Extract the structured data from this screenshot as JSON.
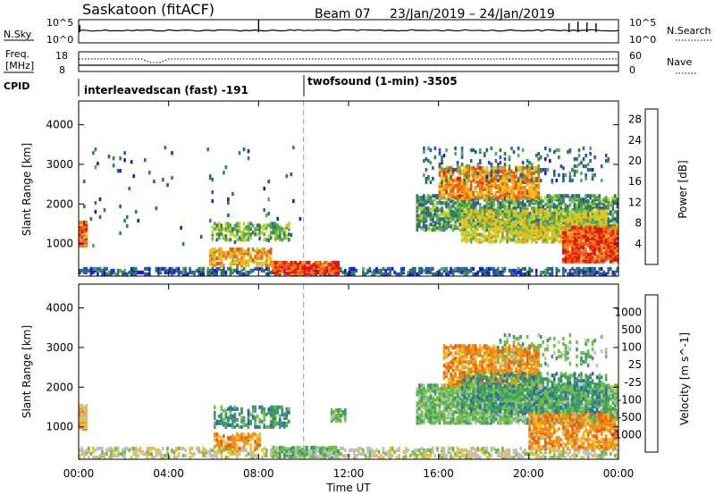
{
  "header": {
    "station": "Saskatoon (fitACF)",
    "beam": "Beam 07",
    "date_range": "23/Jan/2019 – 24/Jan/2019"
  },
  "top_panels": {
    "nsky_label": "N.Sky",
    "nsky_ticks": [
      "10^5",
      "10^0"
    ],
    "nsearch_label": "N.Search",
    "nsearch_ticks": [
      "10^5",
      "10^0"
    ],
    "freq_label": "Freq.",
    "freq_unit": "[MHz]",
    "freq_ticks": [
      "18",
      "8"
    ],
    "nave_label": "Nave",
    "nave_ticks": [
      "60",
      "0"
    ],
    "cpid_label": "CPID",
    "cpid_modes": [
      {
        "name": "interleavedscan (fast) -191",
        "start_hour": 0
      },
      {
        "name": "twofsound (1-min) -3505",
        "start_hour": 10
      }
    ]
  },
  "chart_data": [
    {
      "type": "heatmap",
      "title": "Power",
      "ylabel": "Slant Range [km]",
      "xlabel": "Time UT",
      "x_ticks": [
        "00:00",
        "04:00",
        "08:00",
        "12:00",
        "16:00",
        "20:00",
        "00:00"
      ],
      "x_range_hours": [
        0,
        24
      ],
      "y_ticks": [
        1000,
        2000,
        3000,
        4000
      ],
      "ylim": [
        180,
        4600
      ],
      "colorbar_label": "Power [dB]",
      "colorbar_ticks": [
        4,
        8,
        12,
        16,
        20,
        24,
        28
      ],
      "colorbar_range": [
        0,
        30
      ],
      "colorbar_colors": [
        "#1a1adc",
        "#2c55b0",
        "#2e7d5a",
        "#58a858",
        "#b4d22a",
        "#f0c020",
        "#f09018",
        "#e85a14",
        "#e81010"
      ],
      "mode_change_hour": 10,
      "regions": [
        {
          "t0": 0,
          "t1": 24,
          "r0": 180,
          "r1": 330,
          "level": 6,
          "density": 0.55
        },
        {
          "t0": 8.6,
          "t1": 11.5,
          "r0": 200,
          "r1": 480,
          "level": 26,
          "density": 0.8
        },
        {
          "t0": 5.8,
          "t1": 8.5,
          "r0": 400,
          "r1": 850,
          "level": 20,
          "density": 0.55
        },
        {
          "t0": 5.9,
          "t1": 9.3,
          "r0": 1050,
          "r1": 1500,
          "level": 12,
          "density": 0.5
        },
        {
          "t0": 0,
          "t1": 0.35,
          "r0": 900,
          "r1": 1500,
          "level": 24,
          "density": 0.9
        },
        {
          "t0": 15.0,
          "t1": 24,
          "r0": 1300,
          "r1": 2200,
          "level": 10,
          "density": 0.6
        },
        {
          "t0": 16.0,
          "t1": 20.5,
          "r0": 2100,
          "r1": 2900,
          "level": 22,
          "density": 0.6
        },
        {
          "t0": 17.0,
          "t1": 23.5,
          "r0": 1000,
          "r1": 1800,
          "level": 16,
          "density": 0.6
        },
        {
          "t0": 21.5,
          "t1": 24,
          "r0": 500,
          "r1": 1400,
          "level": 26,
          "density": 0.75
        },
        {
          "t0": 15.3,
          "t1": 23.6,
          "r0": 2500,
          "r1": 3400,
          "level": 8,
          "density": 0.12
        },
        {
          "t0": 0.2,
          "t1": 10,
          "r0": 900,
          "r1": 3400,
          "level": 6,
          "density": 0.015
        }
      ]
    },
    {
      "type": "heatmap",
      "title": "Velocity",
      "ylabel": "Slant Range [km]",
      "xlabel": "Time UT",
      "x_ticks": [
        "00:00",
        "04:00",
        "08:00",
        "12:00",
        "16:00",
        "20:00",
        "00:00"
      ],
      "x_range_hours": [
        0,
        24
      ],
      "y_ticks": [
        1000,
        2000,
        3000,
        4000
      ],
      "ylim": [
        180,
        4600
      ],
      "colorbar_label": "Velocity [m s^-1]",
      "colorbar_ticks": [
        "1000",
        "500",
        "100",
        "25",
        "-25",
        "-100",
        "-500",
        "-1000"
      ],
      "colorbar_colors": [
        "#2040c0",
        "#2f6aa8",
        "#3a9a6a",
        "#70c040",
        "#bfbfbf",
        "#f0c030",
        "#f09018",
        "#e86010",
        "#e81010"
      ],
      "mode_change_hour": 10,
      "regions": [
        {
          "t0": 0,
          "t1": 24,
          "r0": 180,
          "r1": 420,
          "level": "-25",
          "density": 0.45
        },
        {
          "t0": 0,
          "t1": 0.35,
          "r0": 900,
          "r1": 1500,
          "level": "-100",
          "density": 0.9
        },
        {
          "t0": 6.0,
          "t1": 8.0,
          "r0": 400,
          "r1": 800,
          "level": "-500",
          "density": 0.55
        },
        {
          "t0": 6.0,
          "t1": 9.3,
          "r0": 950,
          "r1": 1450,
          "level": "100",
          "density": 0.4
        },
        {
          "t0": 8.6,
          "t1": 11.5,
          "r0": 200,
          "r1": 450,
          "level": "25",
          "density": 0.6
        },
        {
          "t0": 15.0,
          "t1": 24,
          "r0": 1050,
          "r1": 2000,
          "level": "25",
          "density": 0.75
        },
        {
          "t0": 16.2,
          "t1": 20.5,
          "r0": 2000,
          "r1": 3000,
          "level": "-500",
          "density": 0.6
        },
        {
          "t0": 17.0,
          "t1": 23.5,
          "r0": 1300,
          "r1": 2300,
          "level": "100",
          "density": 0.35
        },
        {
          "t0": 20.0,
          "t1": 24,
          "r0": 400,
          "r1": 1300,
          "level": "-500",
          "density": 0.55
        },
        {
          "t0": 11.2,
          "t1": 11.8,
          "r0": 1100,
          "r1": 1400,
          "level": "25",
          "density": 0.7
        },
        {
          "t0": 18.5,
          "t1": 23.5,
          "r0": 2500,
          "r1": 3300,
          "level": "25",
          "density": 0.12
        }
      ]
    }
  ]
}
